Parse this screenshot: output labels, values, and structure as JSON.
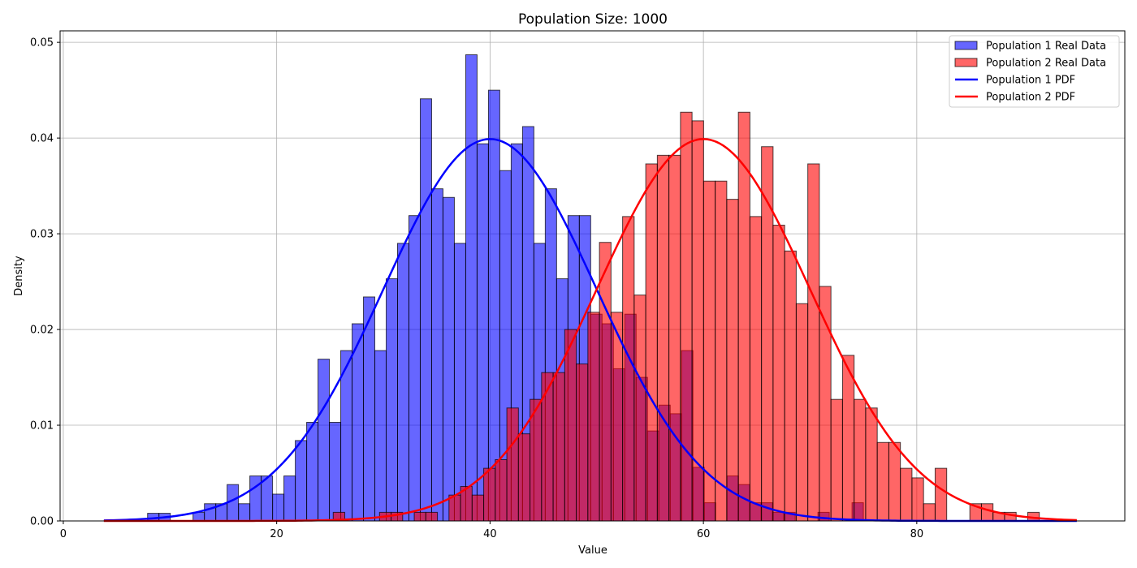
{
  "chart_data": {
    "type": "bar",
    "title": "Population Size: 1000",
    "xlabel": "Value",
    "ylabel": "Density",
    "xlim": [
      -0.3,
      99.5
    ],
    "ylim": [
      0,
      0.0512
    ],
    "x_ticks": [
      0,
      20,
      40,
      60,
      80
    ],
    "y_ticks": [
      0.0,
      0.01,
      0.02,
      0.03,
      0.04,
      0.05
    ],
    "y_tick_labels": [
      "0.00",
      "0.01",
      "0.02",
      "0.03",
      "0.04",
      "0.05"
    ],
    "grid": true,
    "legend_position": "top-right",
    "histograms": [
      {
        "name": "Population 1 Real Data",
        "color": "#0000ff",
        "alpha": 0.6,
        "edgecolor": "#000000",
        "bin_start": 7.9,
        "bin_width": 1.065,
        "densities": [
          0.0008,
          0.0008,
          0,
          0,
          0.0009,
          0.0018,
          0.0018,
          0.0038,
          0.0018,
          0.0047,
          0.0047,
          0.0028,
          0.0047,
          0.0084,
          0.0103,
          0.0169,
          0.0103,
          0.0178,
          0.0206,
          0.0234,
          0.0178,
          0.0253,
          0.029,
          0.0319,
          0.0441,
          0.0347,
          0.0338,
          0.029,
          0.0487,
          0.0394,
          0.045,
          0.0366,
          0.0394,
          0.0412,
          0.029,
          0.0347,
          0.0253,
          0.0319,
          0.0319,
          0.0216,
          0.0206,
          0.0159,
          0.0216,
          0.015,
          0.0094,
          0.0121,
          0.0112,
          0.0178,
          0.0056,
          0.0019,
          0,
          0.0047,
          0.0038,
          0.0019,
          0.0019,
          0.0009,
          0.0009,
          0,
          0,
          0.0009,
          0,
          0,
          0.0019
        ]
      },
      {
        "name": "Population 2 Real Data",
        "color": "#ff0000",
        "alpha": 0.6,
        "edgecolor": "#000000",
        "bin_start": 25.3,
        "bin_width": 1.085,
        "densities": [
          0.0009,
          0,
          0,
          0,
          0.0009,
          0.0009,
          0,
          0.0009,
          0.0009,
          0,
          0.0027,
          0.0036,
          0.0027,
          0.0055,
          0.0064,
          0.0118,
          0.0091,
          0.0127,
          0.0155,
          0.0155,
          0.02,
          0.0164,
          0.0218,
          0.0291,
          0.0218,
          0.0318,
          0.0236,
          0.0373,
          0.0382,
          0.0382,
          0.0427,
          0.0418,
          0.0355,
          0.0355,
          0.0336,
          0.0427,
          0.0318,
          0.0391,
          0.0309,
          0.0282,
          0.0227,
          0.0373,
          0.0245,
          0.0127,
          0.0173,
          0.0127,
          0.0118,
          0.0082,
          0.0082,
          0.0055,
          0.0045,
          0.0018,
          0.0055,
          0,
          0,
          0.0018,
          0.0018,
          0.0009,
          0.0009,
          0,
          0.0009
        ]
      }
    ],
    "pdf_curves": [
      {
        "name": "Population 1 PDF",
        "color": "#0000ff",
        "mean": 40,
        "std": 10,
        "x_range": [
          3.8,
          95
        ]
      },
      {
        "name": "Population 2 PDF",
        "color": "#ff0000",
        "mean": 60,
        "std": 10,
        "x_range": [
          3.8,
          95
        ]
      }
    ]
  }
}
